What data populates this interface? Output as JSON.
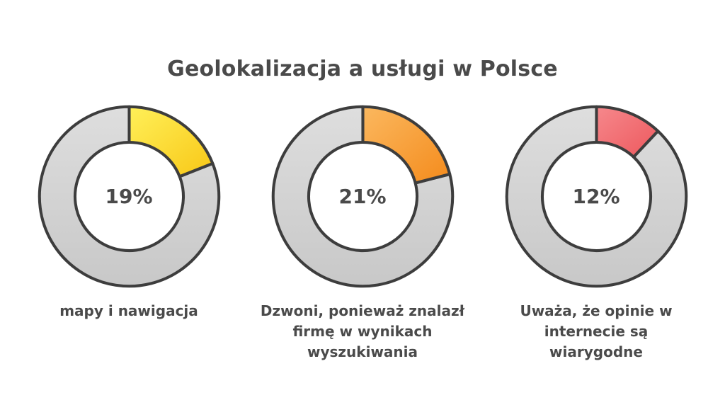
{
  "title": "Geolokalizacja a usługi w Polsce",
  "colors": {
    "text": "#4a4a4a",
    "background": "#ffffff",
    "outline": "#3d3d3d",
    "remainder_light": "#dedede",
    "remainder_dark": "#c8c8c8"
  },
  "chart_data": {
    "type": "pie",
    "subtype": "donut-small-multiples",
    "title": "Geolokalizacja a usługi w Polsce",
    "legend_position": "none",
    "start_angle_deg": 0,
    "direction": "clockwise",
    "outline_color": "#3d3d3d",
    "remainder_color": "#d9d9d9",
    "donuts": [
      {
        "value": 19,
        "remainder": 81,
        "value_label": "19%",
        "label": "mapy i nawigacja",
        "color": "#fcdc37",
        "color_light": "#fff059",
        "color_dark": "#f8c716"
      },
      {
        "value": 21,
        "remainder": 79,
        "value_label": "21%",
        "label": "Dzwoni, ponieważ znalazł\nfirmę w wynikach\nwyszukiwania",
        "color": "#f8a23e",
        "color_light": "#fbb85f",
        "color_dark": "#f48b1c"
      },
      {
        "value": 12,
        "remainder": 88,
        "value_label": "12%",
        "label": "Uważa, że opinie w\ninternecie są\nwiarygodne",
        "color": "#f1696e",
        "color_light": "#f6888c",
        "color_dark": "#ed585d"
      }
    ]
  }
}
